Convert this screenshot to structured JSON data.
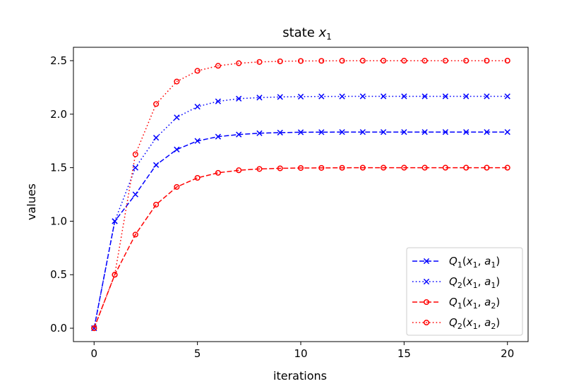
{
  "chart_data": {
    "type": "line",
    "title": {
      "base": "state ",
      "var": "x",
      "sub": "1"
    },
    "xlabel": "iterations",
    "ylabel": "values",
    "xlim": [
      -1,
      21
    ],
    "ylim": [
      -0.125,
      2.625
    ],
    "xticks": [
      0,
      5,
      10,
      15,
      20
    ],
    "xtick_labels": [
      "0",
      "5",
      "10",
      "15",
      "20"
    ],
    "yticks": [
      0.0,
      0.5,
      1.0,
      1.5,
      2.0,
      2.5
    ],
    "ytick_labels": [
      "0.0",
      "0.5",
      "1.0",
      "1.5",
      "2.0",
      "2.5"
    ],
    "grid": false,
    "legend_position": "lower-right",
    "x": [
      0,
      1,
      2,
      3,
      4,
      5,
      6,
      7,
      8,
      9,
      10,
      11,
      12,
      13,
      14,
      15,
      16,
      17,
      18,
      19,
      20
    ],
    "series": [
      {
        "name": "Q1(x1, a1)",
        "label": {
          "q": "Q",
          "qsub": "1",
          "open": "(",
          "x": "x",
          "xsub": "1",
          "comma": ", ",
          "a": "a",
          "asub": "1",
          "close": ")"
        },
        "color": "#0000ff",
        "linestyle": "dashed",
        "marker": "x",
        "values": [
          0.0,
          1.0,
          1.25,
          1.525,
          1.67,
          1.75,
          1.79,
          1.81,
          1.822,
          1.828,
          1.831,
          1.832,
          1.833,
          1.833,
          1.833,
          1.833,
          1.833,
          1.833,
          1.833,
          1.833,
          1.833
        ]
      },
      {
        "name": "Q2(x1, a1)",
        "label": {
          "q": "Q",
          "qsub": "2",
          "open": "(",
          "x": "x",
          "xsub": "1",
          "comma": ", ",
          "a": "a",
          "asub": "1",
          "close": ")"
        },
        "color": "#0000ff",
        "linestyle": "dotted",
        "marker": "x",
        "values": [
          0.0,
          1.0,
          1.5,
          1.78,
          1.97,
          2.07,
          2.12,
          2.145,
          2.155,
          2.161,
          2.164,
          2.166,
          2.166,
          2.167,
          2.167,
          2.167,
          2.167,
          2.167,
          2.167,
          2.167,
          2.167
        ]
      },
      {
        "name": "Q1(x1, a2)",
        "label": {
          "q": "Q",
          "qsub": "1",
          "open": "(",
          "x": "x",
          "xsub": "1",
          "comma": ", ",
          "a": "a",
          "asub": "2",
          "close": ")"
        },
        "color": "#ff0000",
        "linestyle": "dashed",
        "marker": "o",
        "values": [
          0.0,
          0.5,
          0.875,
          1.155,
          1.32,
          1.405,
          1.452,
          1.476,
          1.488,
          1.494,
          1.497,
          1.498,
          1.499,
          1.5,
          1.5,
          1.5,
          1.5,
          1.5,
          1.5,
          1.5,
          1.5
        ]
      },
      {
        "name": "Q2(x1, a2)",
        "label": {
          "q": "Q",
          "qsub": "2",
          "open": "(",
          "x": "x",
          "xsub": "1",
          "comma": ", ",
          "a": "a",
          "asub": "2",
          "close": ")"
        },
        "color": "#ff0000",
        "linestyle": "dotted",
        "marker": "o",
        "values": [
          0.0,
          0.5,
          1.625,
          2.095,
          2.305,
          2.405,
          2.452,
          2.476,
          2.488,
          2.494,
          2.497,
          2.498,
          2.499,
          2.5,
          2.5,
          2.5,
          2.5,
          2.5,
          2.5,
          2.5,
          2.5
        ]
      }
    ]
  }
}
